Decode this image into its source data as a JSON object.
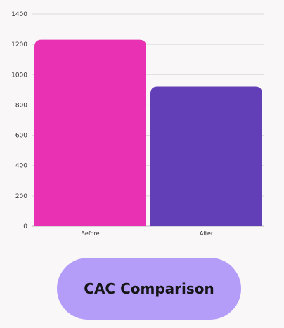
{
  "chart_data": {
    "type": "bar",
    "categories": [
      "Before",
      "After"
    ],
    "values": [
      1230,
      920
    ],
    "ylim": [
      0,
      1400
    ],
    "yticks": [
      0,
      200,
      400,
      600,
      800,
      1000,
      1200,
      1400
    ],
    "grid": true,
    "colors": [
      "#e832b3",
      "#633fb7"
    ],
    "title": "CAC Comparison"
  }
}
